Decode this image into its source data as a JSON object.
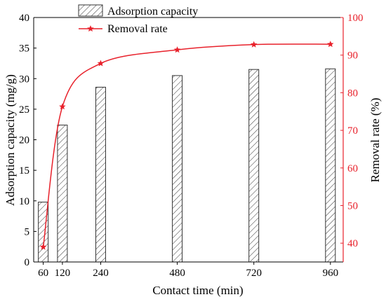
{
  "chart_data": {
    "type": "bar",
    "x": [
      60,
      120,
      240,
      480,
      720,
      960
    ],
    "xlabel": "Contact time (min)",
    "ylabel": "Adsorption capacity (mg/g)",
    "ylim": [
      0,
      40
    ],
    "y_ticks": [
      0,
      5,
      10,
      15,
      20,
      25,
      30,
      35,
      40
    ],
    "y2label": "Removal rate (%)",
    "y2lim": [
      35,
      100
    ],
    "y2_ticks": [
      40,
      50,
      60,
      70,
      80,
      90,
      100
    ],
    "grid": false,
    "legend_position": "top",
    "series": [
      {
        "name": "Adsorption capacity",
        "type": "bar",
        "axis": "left",
        "pattern": "hatched",
        "values": [
          9.8,
          22.4,
          28.6,
          30.5,
          31.5,
          31.6
        ]
      },
      {
        "name": "Removal rate",
        "type": "line",
        "axis": "right",
        "marker": "star",
        "color": "#e8212b",
        "values": [
          39.0,
          76.3,
          87.8,
          91.4,
          92.8,
          92.9
        ]
      }
    ]
  },
  "colors": {
    "line": "#e8212b",
    "bar_stroke": "#333333",
    "axis": "#000000"
  }
}
